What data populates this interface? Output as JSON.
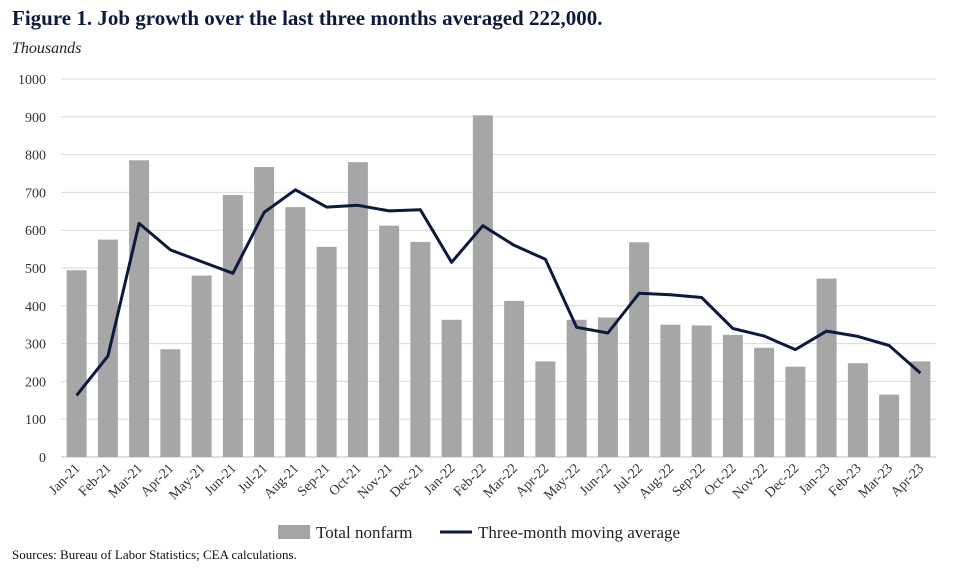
{
  "title": "Figure 1. Job growth over the last three months averaged 222,000.",
  "unit": "Thousands",
  "source": "Sources: Bureau of Labor Statistics; CEA calculations.",
  "chart_data": {
    "type": "bar",
    "categories": [
      "Jan-21",
      "Feb-21",
      "Mar-21",
      "Apr-21",
      "May-21",
      "Jun-21",
      "Jul-21",
      "Aug-21",
      "Sep-21",
      "Oct-21",
      "Nov-21",
      "Dec-21",
      "Jan-22",
      "Feb-22",
      "Mar-22",
      "Apr-22",
      "May-22",
      "Jun-22",
      "Jul-22",
      "Aug-22",
      "Sep-22",
      "Oct-22",
      "Nov-22",
      "Dec-22",
      "Jan-23",
      "Feb-23",
      "Mar-23",
      "Apr-23"
    ],
    "series": [
      {
        "name": "Total nonfarm",
        "type": "bar",
        "color": "#a6a6a6",
        "values": [
          494,
          575,
          785,
          285,
          480,
          693,
          767,
          661,
          556,
          780,
          612,
          569,
          363,
          904,
          413,
          253,
          363,
          369,
          568,
          350,
          348,
          323,
          289,
          239,
          472,
          248,
          165,
          253
        ]
      },
      {
        "name": "Three-month moving average",
        "type": "line",
        "color": "#0e1a3d",
        "values": [
          163,
          267,
          618,
          548,
          517,
          486,
          647,
          707,
          661,
          666,
          651,
          654,
          515,
          612,
          560,
          523,
          343,
          328,
          433,
          429,
          422,
          340,
          320,
          284,
          333,
          319,
          295,
          222
        ]
      }
    ],
    "ylim": [
      0,
      1000
    ],
    "yticks": [
      0,
      100,
      200,
      300,
      400,
      500,
      600,
      700,
      800,
      900,
      1000
    ],
    "grid": true,
    "legend_position": "bottom"
  }
}
